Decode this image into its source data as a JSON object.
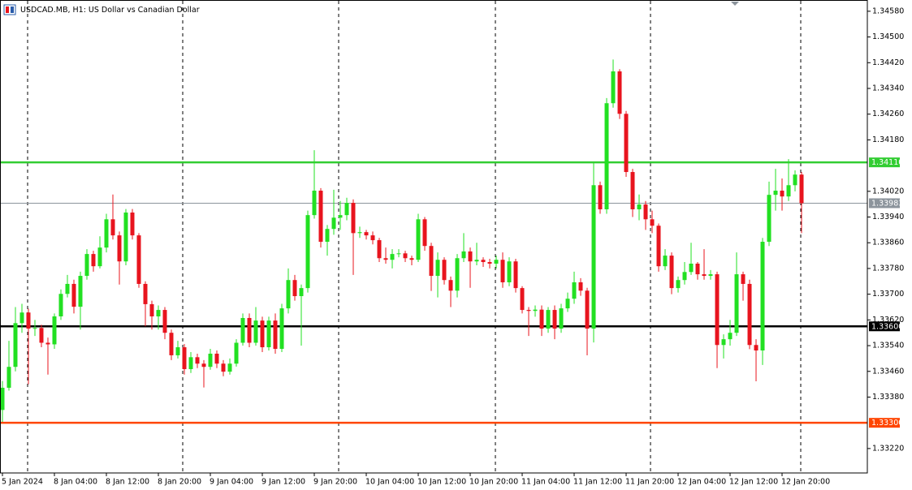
{
  "chart_data": {
    "type": "candlestick",
    "title": "USDCAD.MB, H1:  US Dollar vs Canadian Dollar",
    "categories": [
      "5 Jan 2024",
      null,
      null,
      null,
      null,
      null,
      null,
      null,
      "8 Jan 04:00",
      null,
      null,
      null,
      null,
      null,
      null,
      null,
      "8 Jan 12:00",
      null,
      null,
      null,
      null,
      null,
      null,
      null,
      "8 Jan 20:00",
      null,
      null,
      null,
      null,
      null,
      null,
      null,
      "9 Jan 04:00",
      null,
      null,
      null,
      null,
      null,
      null,
      null,
      "9 Jan 12:00",
      null,
      null,
      null,
      null,
      null,
      null,
      null,
      "9 Jan 20:00",
      null,
      null,
      null,
      null,
      null,
      null,
      null,
      "10 Jan 04:00",
      null,
      null,
      null,
      null,
      null,
      null,
      null,
      "10 Jan 12:00",
      null,
      null,
      null,
      null,
      null,
      null,
      null,
      "10 Jan 20:00",
      null,
      null,
      null,
      null,
      null,
      null,
      null,
      "11 Jan 04:00",
      null,
      null,
      null,
      null,
      null,
      null,
      null,
      "11 Jan 12:00",
      null,
      null,
      null,
      null,
      null,
      null,
      null,
      "11 Jan 20:00",
      null,
      null,
      null,
      null,
      null,
      null,
      null,
      "12 Jan 04:00",
      null,
      null,
      null,
      null,
      null,
      null,
      null,
      "12 Jan 12:00",
      null,
      null,
      null,
      null,
      null,
      null,
      null,
      "12 Jan 20:00",
      null,
      null,
      null
    ],
    "open": [
      1.3334,
      1.33409,
      1.33474,
      1.3361,
      1.33643,
      1.33593,
      1.33595,
      1.33549,
      1.33544,
      1.33631,
      1.33701,
      1.33732,
      1.33661,
      1.33757,
      1.33825,
      1.33787,
      1.33845,
      1.33933,
      1.33883,
      1.33802,
      1.33954,
      1.33883,
      1.33732,
      1.33669,
      1.33631,
      1.33651,
      1.3358,
      1.3351,
      1.33535,
      1.33467,
      1.33504,
      1.33484,
      1.33474,
      1.33515,
      1.33484,
      1.33459,
      1.33484,
      1.33549,
      1.33626,
      1.33549,
      1.33618,
      1.33535,
      1.33618,
      1.3353,
      1.33656,
      1.33744,
      1.33694,
      1.33719,
      1.33946,
      1.34022,
      1.33863,
      1.33903,
      1.33938,
      1.33946,
      1.33984,
      1.3389,
      1.33893,
      1.33883,
      1.33868,
      1.33812,
      1.33807,
      1.33825,
      1.33827,
      1.33812,
      1.33807,
      1.33933,
      1.3385,
      1.33757,
      1.33807,
      1.33744,
      1.33711,
      1.33812,
      1.33833,
      1.33802,
      1.33807,
      1.338,
      1.33795,
      1.33807,
      1.33737,
      1.33802,
      1.33719,
      1.33651,
      1.33648,
      1.33652,
      1.33593,
      1.33651,
      1.33593,
      1.33656,
      1.33686,
      1.33737,
      1.33711,
      1.33593,
      1.34039,
      1.33964,
      1.34294,
      1.34393,
      1.34261,
      1.3408,
      1.33964,
      1.33979,
      1.33933,
      1.33913,
      1.33787,
      1.3382,
      1.33719,
      1.33744,
      1.33769,
      1.33795,
      1.33762,
      1.33757,
      1.33762,
      1.33542,
      1.3356,
      1.3358,
      1.33762,
      1.33732,
      1.33542,
      1.33525,
      1.33863,
      1.34009,
      1.34022,
      1.34004,
      1.34039,
      1.34072
    ],
    "high": [
      1.3343,
      1.33555,
      1.3366,
      1.3367,
      1.33655,
      1.3362,
      1.33605,
      1.33565,
      1.3364,
      1.33715,
      1.3376,
      1.33745,
      1.3377,
      1.3384,
      1.33835,
      1.3388,
      1.3395,
      1.3401,
      1.33895,
      1.33965,
      1.33965,
      1.3389,
      1.3374,
      1.3368,
      1.33665,
      1.3366,
      1.3359,
      1.33555,
      1.33545,
      1.3352,
      1.33515,
      1.33495,
      1.3353,
      1.33525,
      1.33495,
      1.335,
      1.3356,
      1.3364,
      1.3364,
      1.3366,
      1.3363,
      1.3363,
      1.3364,
      1.3367,
      1.3378,
      1.3376,
      1.3373,
      1.3396,
      1.34148,
      1.3403,
      1.33915,
      1.34025,
      1.3399,
      1.34,
      1.33995,
      1.3391,
      1.339,
      1.33895,
      1.33875,
      1.33845,
      1.3384,
      1.3384,
      1.33835,
      1.3382,
      1.3395,
      1.3394,
      1.3386,
      1.3383,
      1.33815,
      1.33755,
      1.33825,
      1.3389,
      1.33845,
      1.3386,
      1.33815,
      1.3381,
      1.3382,
      1.3383,
      1.33815,
      1.3381,
      1.33725,
      1.3366,
      1.33665,
      1.33665,
      1.3366,
      1.33665,
      1.3367,
      1.33705,
      1.3377,
      1.3375,
      1.3372,
      1.3411,
      1.3405,
      1.3431,
      1.3443,
      1.344,
      1.3427,
      1.3409,
      1.3401,
      1.3399,
      1.3396,
      1.3392,
      1.3384,
      1.3383,
      1.33755,
      1.338,
      1.3386,
      1.338,
      1.3384,
      1.33775,
      1.3377,
      1.33575,
      1.3362,
      1.3383,
      1.3377,
      1.33745,
      1.3356,
      1.33875,
      1.3405,
      1.3409,
      1.3406,
      1.3412,
      1.34085,
      1.3408
    ],
    "low": [
      1.33303,
      1.334,
      1.3346,
      1.3358,
      1.3342,
      1.3357,
      1.33535,
      1.3345,
      1.3353,
      1.3362,
      1.3369,
      1.3364,
      1.3359,
      1.33745,
      1.3377,
      1.3378,
      1.3383,
      1.3387,
      1.3373,
      1.3379,
      1.3387,
      1.3372,
      1.336,
      1.3359,
      1.3359,
      1.3356,
      1.33495,
      1.335,
      1.3345,
      1.33455,
      1.3347,
      1.3341,
      1.33465,
      1.3347,
      1.33445,
      1.3345,
      1.33475,
      1.3354,
      1.33535,
      1.3354,
      1.3352,
      1.33525,
      1.33515,
      1.3352,
      1.3364,
      1.3368,
      1.3354,
      1.33705,
      1.33935,
      1.33845,
      1.3382,
      1.33885,
      1.339,
      1.3393,
      1.3376,
      1.33875,
      1.3387,
      1.33855,
      1.338,
      1.33795,
      1.3378,
      1.33815,
      1.338,
      1.3379,
      1.338,
      1.33835,
      1.3371,
      1.3369,
      1.3373,
      1.3366,
      1.3369,
      1.338,
      1.3372,
      1.3379,
      1.33785,
      1.3378,
      1.3378,
      1.3372,
      1.33725,
      1.33705,
      1.3364,
      1.3357,
      1.3363,
      1.3357,
      1.3358,
      1.3356,
      1.3358,
      1.33645,
      1.3367,
      1.33695,
      1.3351,
      1.3355,
      1.3395,
      1.3395,
      1.3428,
      1.34245,
      1.34065,
      1.3394,
      1.3393,
      1.339,
      1.3389,
      1.3377,
      1.33775,
      1.337,
      1.33705,
      1.3373,
      1.3376,
      1.33745,
      1.33745,
      1.33745,
      1.3347,
      1.335,
      1.3354,
      1.3357,
      1.3368,
      1.33529,
      1.33429,
      1.3348,
      1.3385,
      1.3396,
      1.3396,
      1.3399,
      1.3402,
      1.3389
    ],
    "close": [
      1.33409,
      1.33474,
      1.3361,
      1.33643,
      1.33593,
      1.33595,
      1.33549,
      1.33544,
      1.33631,
      1.33701,
      1.33732,
      1.33661,
      1.33757,
      1.33825,
      1.33787,
      1.33845,
      1.33933,
      1.33883,
      1.33802,
      1.33954,
      1.33883,
      1.33732,
      1.33669,
      1.33631,
      1.33651,
      1.3358,
      1.3351,
      1.33535,
      1.33467,
      1.33504,
      1.33484,
      1.33474,
      1.33515,
      1.33484,
      1.33459,
      1.33484,
      1.33549,
      1.33626,
      1.33549,
      1.33618,
      1.33535,
      1.33618,
      1.3353,
      1.33656,
      1.33744,
      1.33694,
      1.33719,
      1.33946,
      1.34022,
      1.33863,
      1.33903,
      1.33938,
      1.33946,
      1.33984,
      1.3389,
      1.33893,
      1.33883,
      1.33868,
      1.33812,
      1.33807,
      1.33825,
      1.33827,
      1.33812,
      1.33807,
      1.33933,
      1.3385,
      1.33757,
      1.33807,
      1.33744,
      1.33711,
      1.33812,
      1.33833,
      1.33802,
      1.33807,
      1.338,
      1.33795,
      1.33807,
      1.33737,
      1.33802,
      1.33719,
      1.33651,
      1.33648,
      1.33652,
      1.33593,
      1.33651,
      1.33593,
      1.33656,
      1.33686,
      1.33737,
      1.33711,
      1.33593,
      1.34039,
      1.33964,
      1.34294,
      1.34393,
      1.34261,
      1.3408,
      1.33964,
      1.33979,
      1.33933,
      1.33913,
      1.33787,
      1.3382,
      1.33719,
      1.33744,
      1.33769,
      1.33795,
      1.33762,
      1.33757,
      1.33762,
      1.33542,
      1.3356,
      1.3358,
      1.33762,
      1.33732,
      1.33542,
      1.33525,
      1.33863,
      1.34009,
      1.34022,
      1.34004,
      1.34039,
      1.34072,
      1.33983
    ],
    "up_color": "#22e022",
    "down_color": "#e8141e",
    "ylim": [
      1.33144,
      1.34615
    ],
    "yticks": [
      {
        "value": 1.3458,
        "label": "1.34580"
      },
      {
        "value": 1.345,
        "label": "1.34500"
      },
      {
        "value": 1.3442,
        "label": "1.34420"
      },
      {
        "value": 1.3434,
        "label": "1.34340"
      },
      {
        "value": 1.3426,
        "label": "1.34260"
      },
      {
        "value": 1.3418,
        "label": "1.34180"
      },
      {
        "value": 1.3402,
        "label": "1.34020"
      },
      {
        "value": 1.3394,
        "label": "1.33940"
      },
      {
        "value": 1.3386,
        "label": "1.33860"
      },
      {
        "value": 1.3378,
        "label": "1.33780"
      },
      {
        "value": 1.337,
        "label": "1.33700"
      },
      {
        "value": 1.3362,
        "label": "1.33620"
      },
      {
        "value": 1.3354,
        "label": "1.33540"
      },
      {
        "value": 1.3346,
        "label": "1.33460"
      },
      {
        "value": 1.3338,
        "label": "1.33380"
      },
      {
        "value": 1.3322,
        "label": "1.33220"
      }
    ],
    "hlines": [
      {
        "value": 1.3411,
        "label": "1.34110",
        "color": "#32cd32"
      },
      {
        "value": 1.33983,
        "label": "1.33983",
        "color": "#8c949c"
      },
      {
        "value": 1.336,
        "label": "1.33600",
        "color": "#000000"
      },
      {
        "value": 1.333,
        "label": "1.33300",
        "color": "#ff4500"
      }
    ]
  }
}
